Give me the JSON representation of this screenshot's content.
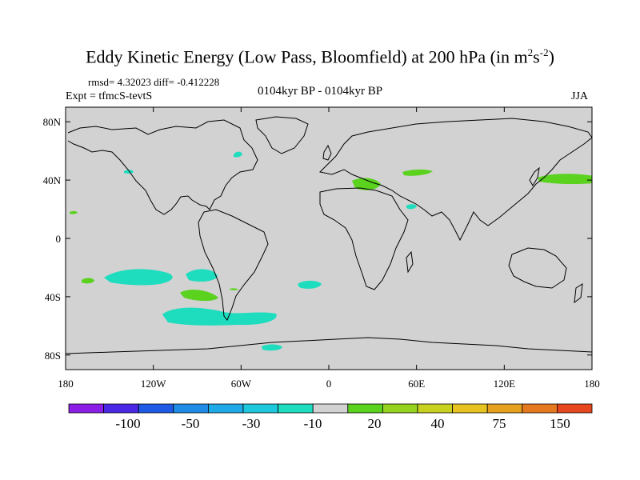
{
  "title": {
    "main": "Eddy Kinetic Energy (Low Pass, Bloomfield) at 200 hPa (in m",
    "sup1": "2",
    "mid": "s",
    "sup2": "-2",
    "end": ")"
  },
  "stats": "rmsd= 4.32023 diff= -0.412228",
  "expt": "Expt = tfmcS-tevtS",
  "period": "0104kyr BP - 0104kyr BP",
  "season": "JJA",
  "axes": {
    "lat_ticks": [
      {
        "value": 80,
        "label": "80N"
      },
      {
        "value": 40,
        "label": "40N"
      },
      {
        "value": 0,
        "label": "0"
      },
      {
        "value": -40,
        "label": "40S"
      },
      {
        "value": -80,
        "label": "80S"
      }
    ],
    "lon_ticks": [
      {
        "value": -180,
        "label": "180"
      },
      {
        "value": -120,
        "label": "120W"
      },
      {
        "value": -60,
        "label": "60W"
      },
      {
        "value": 0,
        "label": "0"
      },
      {
        "value": 60,
        "label": "60E"
      },
      {
        "value": 120,
        "label": "120E"
      },
      {
        "value": 180,
        "label": "180"
      }
    ],
    "lat_range": [
      -90,
      90
    ],
    "lon_range": [
      -180,
      180
    ]
  },
  "colorbar": {
    "colors": [
      "#8a1ee6",
      "#4b28e6",
      "#1e5ae6",
      "#1e8ce6",
      "#1eaae6",
      "#1ec8dc",
      "#1edcbe",
      "#d2d2d2",
      "#5ad21e",
      "#96d21e",
      "#c8d21e",
      "#e6c31e",
      "#e6a01e",
      "#e6781e",
      "#e6461e"
    ],
    "labels": [
      "-100",
      "-50",
      "-30",
      "-10",
      "20",
      "40",
      "75",
      "150"
    ]
  },
  "contours": [
    {
      "lon": -107,
      "lat": -28,
      "value": -10,
      "color": "#1edcbe"
    },
    {
      "lon": -67,
      "lat": -25,
      "value": -10,
      "color": "#1edcbe"
    },
    {
      "lon": -52,
      "lat": -56,
      "value": -10,
      "color": "#1edcbe"
    },
    {
      "lon": -13,
      "lat": -31,
      "value": -10,
      "color": "#1edcbe"
    },
    {
      "lon": -32,
      "lat": -75,
      "value": -10,
      "color": "#1edcbe"
    },
    {
      "lon": -139,
      "lat": 46,
      "value": -10,
      "color": "#1edcbe"
    },
    {
      "lon": -62,
      "lat": 57,
      "value": -10,
      "color": "#1edcbe"
    },
    {
      "lon": 55,
      "lat": 22,
      "value": -10,
      "color": "#1edcbe"
    },
    {
      "lon": -169,
      "lat": -29,
      "value": 20,
      "color": "#5ad21e"
    },
    {
      "lon": -70,
      "lat": -39,
      "value": 20,
      "color": "#5ad21e"
    },
    {
      "lon": 30,
      "lat": 37,
      "value": 20,
      "color": "#5ad21e"
    },
    {
      "lon": 61,
      "lat": 45,
      "value": 20,
      "color": "#5ad21e"
    },
    {
      "lon": 160,
      "lat": 40,
      "value": 20,
      "color": "#5ad21e"
    },
    {
      "lon": -178,
      "lat": 17,
      "value": 20,
      "color": "#5ad21e"
    }
  ]
}
